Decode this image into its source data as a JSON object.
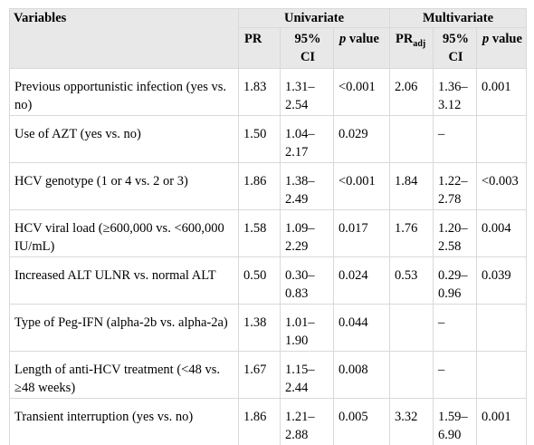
{
  "table": {
    "header": {
      "variables": "Variables",
      "univariate": "Univariate",
      "multivariate": "Multivariate",
      "pr": "PR",
      "ci": "95% CI",
      "p": "p",
      "value": " value",
      "pr_adj_base": "PR",
      "pr_adj_sub": "adj",
      "ci2": "95% CI",
      "p2": "p",
      "value2": " value"
    },
    "rows": [
      {
        "variable": "Previous opportunistic infection (yes vs. no)",
        "pr": "1.83",
        "ci": "1.31–2.54",
        "p": "<0.001",
        "pr_adj": "2.06",
        "ci_adj": "1.36–3.12",
        "p_adj": "0.001"
      },
      {
        "variable": "Use of AZT (yes vs. no)",
        "pr": "1.50",
        "ci": "1.04–2.17",
        "p": "0.029",
        "pr_adj": "",
        "ci_adj": "–",
        "p_adj": ""
      },
      {
        "variable": "HCV genotype (1 or 4 vs. 2 or 3)",
        "pr": "1.86",
        "ci": "1.38–2.49",
        "p": "<0.001",
        "pr_adj": "1.84",
        "ci_adj": "1.22–2.78",
        "p_adj": "<0.003"
      },
      {
        "variable": "HCV viral load (≥600,000 vs. <600,000 IU/mL)",
        "pr": "1.58",
        "ci": "1.09–2.29",
        "p": "0.017",
        "pr_adj": "1.76",
        "ci_adj": "1.20–2.58",
        "p_adj": "0.004"
      },
      {
        "variable": "Increased ALT ULNR vs. normal ALT",
        "pr": "0.50",
        "ci": "0.30–0.83",
        "p": "0.024",
        "pr_adj": "0.53",
        "ci_adj": "0.29–0.96",
        "p_adj": "0.039"
      },
      {
        "variable": "Type of Peg-IFN (alpha-2b vs. alpha-2a)",
        "pr": "1.38",
        "ci": "1.01–1.90",
        "p": "0.044",
        "pr_adj": "",
        "ci_adj": "–",
        "p_adj": ""
      },
      {
        "variable": "Length of anti-HCV treatment (<48 vs. ≥48 weeks)",
        "pr": "1.67",
        "ci": "1.15–2.44",
        "p": "0.008",
        "pr_adj": "",
        "ci_adj": "–",
        "p_adj": ""
      },
      {
        "variable": "Transient interruption (yes vs. no)",
        "pr": "1.86",
        "ci": "1.21–2.88",
        "p": "0.005",
        "pr_adj": "3.32",
        "ci_adj": "1.59–6.90",
        "p_adj": "0.001"
      }
    ]
  }
}
